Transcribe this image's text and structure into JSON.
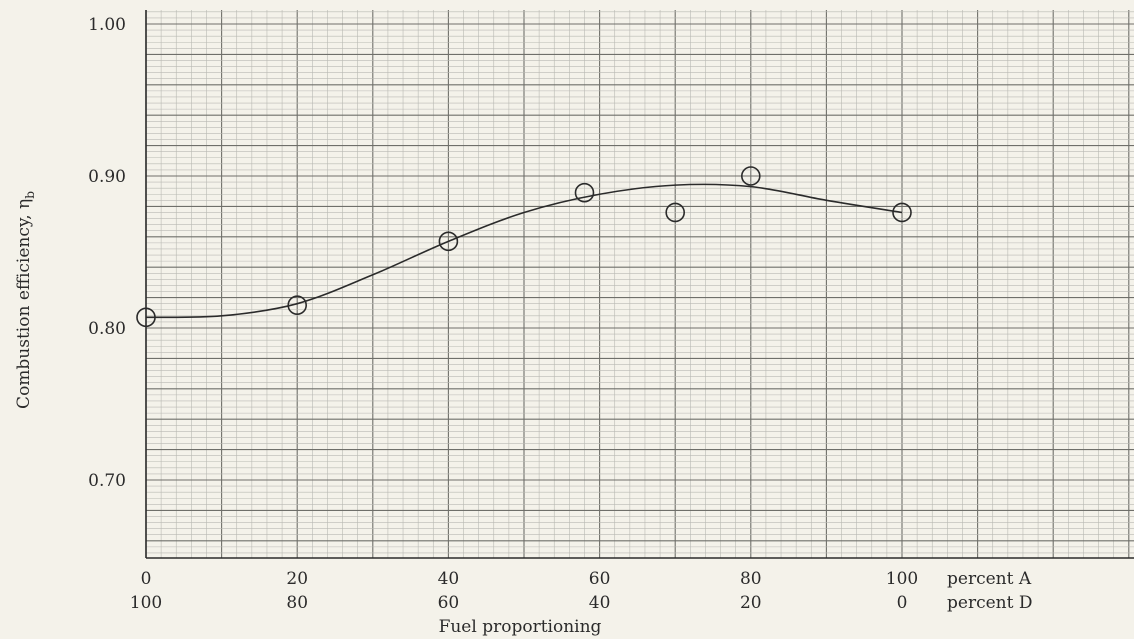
{
  "chart_data": {
    "type": "scatter",
    "xlabel": "Fuel proportioning",
    "ylabel": "Combustion efficiency, η",
    "ylabel_subscript": "b",
    "xlim": [
      0,
      100
    ],
    "ylim": [
      0.66,
      1.0
    ],
    "y_ticks": [
      {
        "value": 0.7,
        "label": "0.70"
      },
      {
        "value": 0.8,
        "label": "0.80"
      },
      {
        "value": 0.9,
        "label": "0.90"
      },
      {
        "value": 1.0,
        "label": "1.00"
      }
    ],
    "x_ticks": [
      {
        "value": 0,
        "top": "0",
        "bottom": "100"
      },
      {
        "value": 20,
        "top": "20",
        "bottom": "80"
      },
      {
        "value": 40,
        "top": "40",
        "bottom": "60"
      },
      {
        "value": 60,
        "top": "60",
        "bottom": "40"
      },
      {
        "value": 80,
        "top": "80",
        "bottom": "20"
      },
      {
        "value": 100,
        "top": "100",
        "bottom": "0"
      }
    ],
    "x_tick_suffix_top": "percent A",
    "x_tick_suffix_bottom": "percent D",
    "points": [
      {
        "x": 0,
        "y": 0.807
      },
      {
        "x": 20,
        "y": 0.815
      },
      {
        "x": 40,
        "y": 0.857
      },
      {
        "x": 58,
        "y": 0.889
      },
      {
        "x": 70,
        "y": 0.876
      },
      {
        "x": 80,
        "y": 0.9
      },
      {
        "x": 100,
        "y": 0.876
      }
    ],
    "curve": [
      {
        "x": 0,
        "y": 0.807
      },
      {
        "x": 10,
        "y": 0.808
      },
      {
        "x": 20,
        "y": 0.816
      },
      {
        "x": 30,
        "y": 0.835
      },
      {
        "x": 40,
        "y": 0.857
      },
      {
        "x": 50,
        "y": 0.876
      },
      {
        "x": 60,
        "y": 0.888
      },
      {
        "x": 70,
        "y": 0.894
      },
      {
        "x": 80,
        "y": 0.893
      },
      {
        "x": 90,
        "y": 0.884
      },
      {
        "x": 100,
        "y": 0.876
      }
    ],
    "grid": true,
    "colors": {
      "paper": "#f4f2ea",
      "grid_fine": "#b9b9b3",
      "grid_major": "#6f6f6a",
      "ink": "#2b2b2b"
    }
  }
}
